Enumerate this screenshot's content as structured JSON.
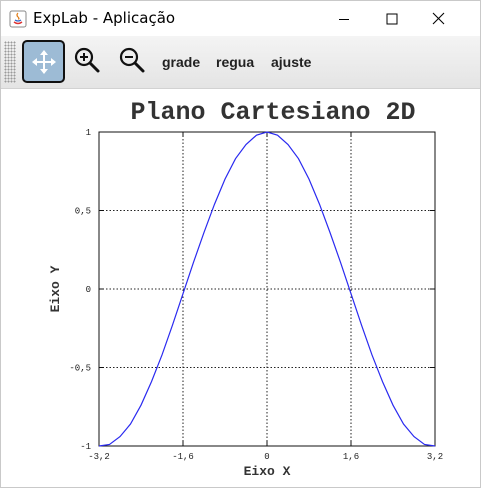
{
  "window": {
    "title": "ExpLab - Aplicação"
  },
  "toolbar": {
    "grade_label": "grade",
    "regua_label": "regua",
    "ajuste_label": "ajuste"
  },
  "chart_data": {
    "type": "line",
    "title": "Plano Cartesiano 2D",
    "xlabel": "Eixo X",
    "ylabel": "Eixo Y",
    "xlim": [
      -3.2,
      3.2
    ],
    "ylim": [
      -1,
      1
    ],
    "x_ticks": [
      -3.2,
      -1.6,
      0,
      1.6,
      3.2
    ],
    "x_tick_labels": [
      "-3,2",
      "-1,6",
      "0",
      "1,6",
      "3,2"
    ],
    "y_ticks": [
      -1,
      -0.5,
      0,
      0.5,
      1
    ],
    "y_tick_labels": [
      "-1",
      "-0,5",
      "0",
      "0,5",
      "1"
    ],
    "grid": true,
    "series": [
      {
        "color": "#2a2af0",
        "x": [
          -3.2,
          -3.0,
          -2.8,
          -2.6,
          -2.4,
          -2.2,
          -2.0,
          -1.8,
          -1.6,
          -1.4,
          -1.2,
          -1.0,
          -0.8,
          -0.6,
          -0.4,
          -0.2,
          0,
          0.2,
          0.4,
          0.6,
          0.8,
          1.0,
          1.2,
          1.4,
          1.6,
          1.8,
          2.0,
          2.2,
          2.4,
          2.6,
          2.8,
          3.0,
          3.2
        ],
        "y": [
          -1.0,
          -0.99,
          -0.94,
          -0.86,
          -0.74,
          -0.59,
          -0.42,
          -0.23,
          -0.03,
          0.17,
          0.36,
          0.54,
          0.7,
          0.83,
          0.92,
          0.98,
          1.0,
          0.98,
          0.92,
          0.83,
          0.7,
          0.54,
          0.36,
          0.17,
          -0.03,
          -0.23,
          -0.42,
          -0.59,
          -0.74,
          -0.86,
          -0.94,
          -0.99,
          -1.0
        ]
      }
    ]
  }
}
